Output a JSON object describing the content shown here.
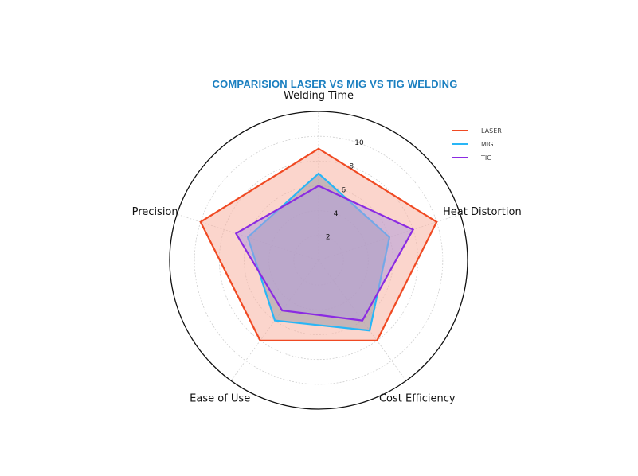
{
  "title": "COMPARISION LASER VS MIG VS TIG WELDING",
  "colors": {
    "title": "#1a7fc0",
    "grid": "#cfcfcf",
    "outer_circle": "#111111"
  },
  "chart_data": {
    "type": "radar",
    "axes": [
      "Welding Time",
      "Heat Distortion",
      "Cost Efficiency",
      "Ease of Use",
      "Precision"
    ],
    "r_ticks": [
      2,
      4,
      6,
      8,
      10
    ],
    "r_max": 12,
    "grid": true,
    "legend_position": "top-right",
    "series": [
      {
        "name": "LASER",
        "color": "#f04a23",
        "fill": "#f8b3a2",
        "values": [
          9,
          10,
          8,
          8,
          10
        ]
      },
      {
        "name": "MIG",
        "color": "#29b6f6",
        "fill": "#9a9aa8",
        "values": [
          7,
          6,
          7,
          6,
          6
        ]
      },
      {
        "name": "TIG",
        "color": "#8b2be2",
        "fill": "#b39ddb",
        "values": [
          6,
          8,
          6,
          5,
          7
        ]
      }
    ]
  }
}
